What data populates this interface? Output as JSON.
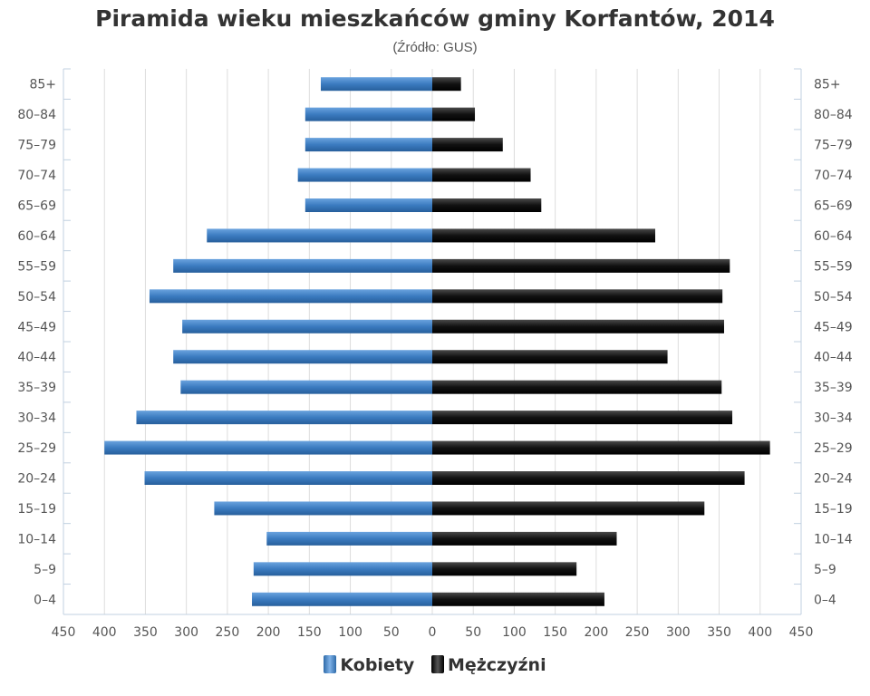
{
  "chart_data": {
    "type": "bar",
    "orientation": "horizontal-population-pyramid",
    "title": "Piramida wieku mieszkańców gminy Korfantów, 2014",
    "subtitle": "(Źródło: GUS)",
    "categories": [
      "0–4",
      "5–9",
      "10–14",
      "15–19",
      "20–24",
      "25–29",
      "30–34",
      "35–39",
      "40–44",
      "45–49",
      "50–54",
      "55–59",
      "60–64",
      "65–69",
      "70–74",
      "75–79",
      "80–84",
      "85+"
    ],
    "series": [
      {
        "name": "Kobiety",
        "side": "left",
        "color": "#3b7bc0",
        "values": [
          220,
          218,
          202,
          266,
          351,
          400,
          361,
          307,
          316,
          305,
          345,
          316,
          275,
          155,
          164,
          155,
          155,
          136
        ]
      },
      {
        "name": "Mężczyźni",
        "side": "right",
        "color": "#111111",
        "values": [
          210,
          176,
          225,
          332,
          381,
          412,
          366,
          353,
          287,
          356,
          354,
          363,
          272,
          133,
          120,
          86,
          52,
          35
        ]
      }
    ],
    "xaxis_ticks": [
      "450",
      "400",
      "350",
      "300",
      "250",
      "200",
      "150",
      "100",
      "50",
      "0",
      "50",
      "100",
      "150",
      "200",
      "250",
      "300",
      "350",
      "400",
      "450"
    ],
    "xlim": [
      -450,
      450
    ],
    "grid": true,
    "legend_position": "bottom-center"
  }
}
